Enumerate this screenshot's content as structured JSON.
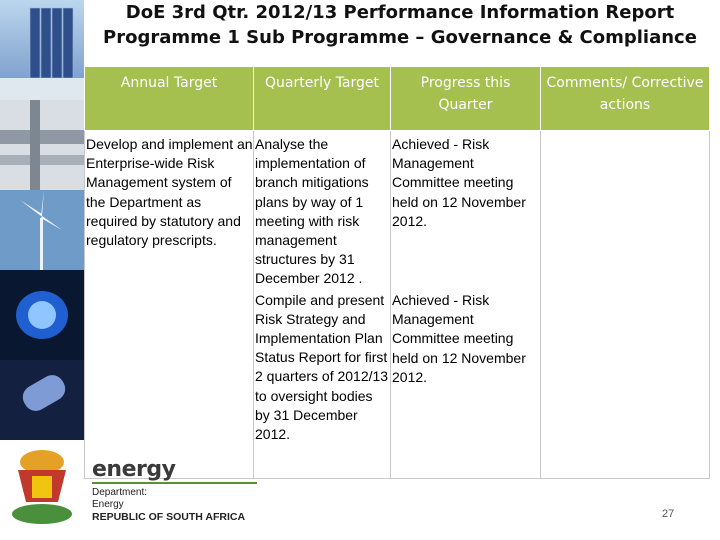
{
  "title": {
    "line1": "DoE 3rd Qtr. 2012/13 Performance Information Report",
    "line2": "Programme 1 Sub Programme – Governance & Compliance"
  },
  "table": {
    "headers": [
      "Annual Target",
      "Quarterly Target",
      "Progress this Quarter",
      "Comments/ Corrective actions"
    ],
    "annual_target": "Develop and implement an Enterprise-wide Risk Management system of the Department as required by statutory and regulatory prescripts.",
    "rows": [
      {
        "quarterly_target": "Analyse the implementation of branch mitigations plans by way of 1 meeting with risk management structures by 31 December 2012 .",
        "progress": "Achieved - Risk Management Committee meeting held on 12 November 2012.",
        "comments": ""
      },
      {
        "quarterly_target": "Compile and present  Risk Strategy and Implementation Plan Status Report for first 2 quarters of 2012/13 to oversight bodies by 31 December 2012.",
        "progress": "Achieved - Risk Management Committee meeting held on 12 November 2012.",
        "comments": ""
      }
    ]
  },
  "branding": {
    "energy": "energy",
    "dept1": "Department:",
    "dept2": "Energy",
    "country": "REPUBLIC OF SOUTH AFRICA"
  },
  "page_number": "27",
  "colors": {
    "header_bg": "#a5c04f",
    "header_text": "#ffffff"
  }
}
